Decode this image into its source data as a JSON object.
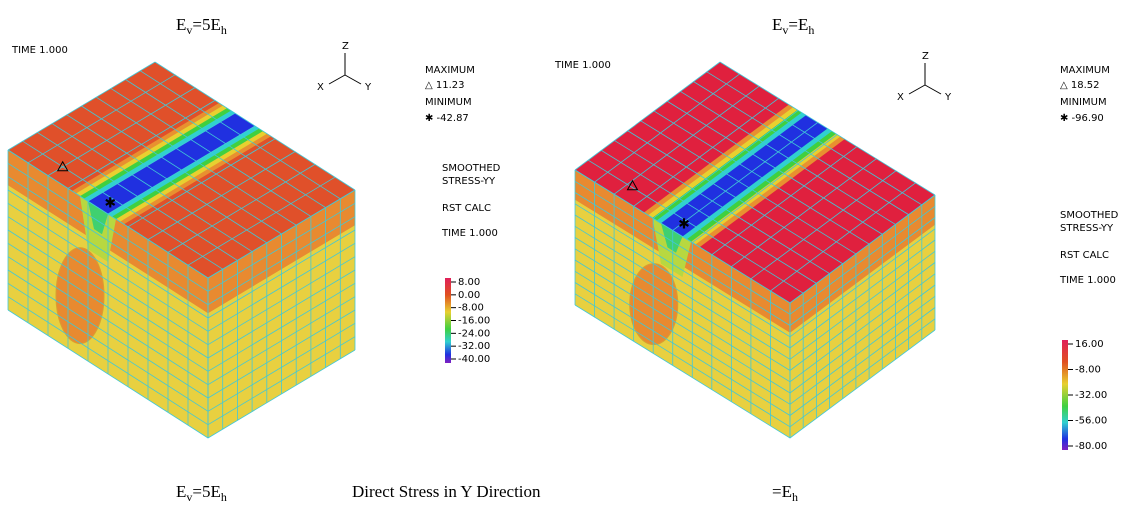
{
  "captions": {
    "top_left": [
      {
        "t": "E"
      },
      {
        "sub": "v"
      },
      {
        "t": "=5E"
      },
      {
        "sub": "h"
      }
    ],
    "top_right": [
      {
        "t": "E"
      },
      {
        "sub": "v"
      },
      {
        "t": "=E"
      },
      {
        "sub": "h"
      }
    ],
    "bottom_left": [
      {
        "t": "E"
      },
      {
        "sub": "v"
      },
      {
        "t": "=5E"
      },
      {
        "sub": "h"
      }
    ],
    "bottom_center": "Direct Stress in Y Direction",
    "bottom_right": [
      {
        "t": "=E"
      },
      {
        "sub": "h"
      }
    ]
  },
  "panels": [
    {
      "time": "TIME 1.000",
      "axes": {
        "z": "Z",
        "x": "X",
        "y": "Y"
      },
      "maximum_label": "MAXIMUM",
      "maximum_value": "△ 11.23",
      "minimum_label": "MINIMUM",
      "minimum_value": "✱ -42.87",
      "result_lines": [
        "SMOOTHED",
        "STRESS-YY",
        "RST CALC",
        "TIME 1.000"
      ],
      "legend": [
        "8.00",
        "0.00",
        "-8.00",
        "-16.00",
        "-24.00",
        "-32.00",
        "-40.00"
      ]
    },
    {
      "time": "TIME 1.000",
      "axes": {
        "z": "Z",
        "x": "X",
        "y": "Y"
      },
      "maximum_label": "MAXIMUM",
      "maximum_value": "△ 18.52",
      "minimum_label": "MINIMUM",
      "minimum_value": "✱ -96.90",
      "result_lines": [
        "SMOOTHED",
        "STRESS-YY",
        "RST CALC",
        "TIME 1.000"
      ],
      "legend": [
        "16.00",
        "-8.00",
        "-32.00",
        "-56.00",
        "-80.00"
      ]
    }
  ]
}
